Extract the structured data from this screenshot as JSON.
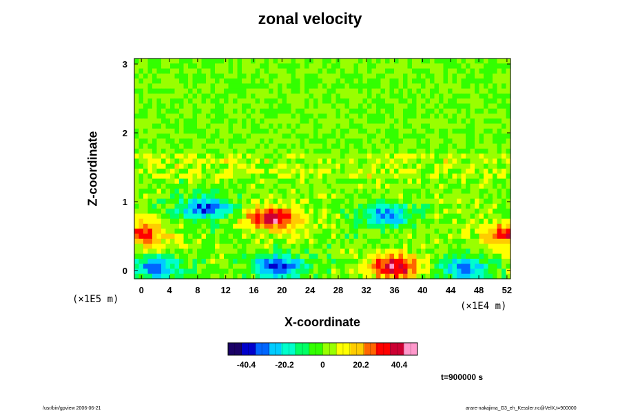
{
  "chart_data": {
    "type": "heatmap",
    "title": "zonal velocity",
    "xlabel": "X-coordinate",
    "ylabel": "Z-coordinate",
    "x_ticks": [
      "0",
      "4",
      "8",
      "12",
      "16",
      "20",
      "24",
      "28",
      "32",
      "36",
      "40",
      "44",
      "48",
      "52"
    ],
    "y_ticks": [
      "0",
      "1",
      "2",
      "3"
    ],
    "x_scale_label": "(×1E4 m)",
    "y_scale_label": "(×1E5 m)",
    "xlim": [
      -1,
      52.5
    ],
    "ylim": [
      -0.12,
      3.08
    ],
    "colorbar": {
      "ticks": [
        "-40.4",
        "-20.2",
        "0",
        "20.2",
        "40.4"
      ],
      "range": [
        -50,
        50
      ],
      "colors": [
        "#1a0066",
        "#0000cc",
        "#0066ff",
        "#00ccff",
        "#00ffcc",
        "#00ff66",
        "#33ff00",
        "#99ff00",
        "#ffff00",
        "#ffcc00",
        "#ff6600",
        "#ff0000",
        "#cc0033",
        "#ff99cc"
      ]
    },
    "features": [
      {
        "x": 19.5,
        "z": 0.05,
        "value": -40
      },
      {
        "x": 2,
        "z": 0.03,
        "value": -30
      },
      {
        "x": 46,
        "z": 0.03,
        "value": -30
      },
      {
        "x": 9,
        "z": 0.9,
        "value": -35
      },
      {
        "x": 35,
        "z": 0.8,
        "value": -30
      },
      {
        "x": 18.5,
        "z": 0.75,
        "value": 40
      },
      {
        "x": 36,
        "z": 0.05,
        "value": 40
      },
      {
        "x": 0,
        "z": 0.52,
        "value": 30
      },
      {
        "x": 52,
        "z": 0.52,
        "value": 30
      }
    ],
    "time_label": "t=900000 s"
  },
  "footer": {
    "left": "/usr/bin/gpview 2006-06-21",
    "right": "arare-nakajima_G3_eh_Kessler.nc@VelX,t=900000"
  }
}
